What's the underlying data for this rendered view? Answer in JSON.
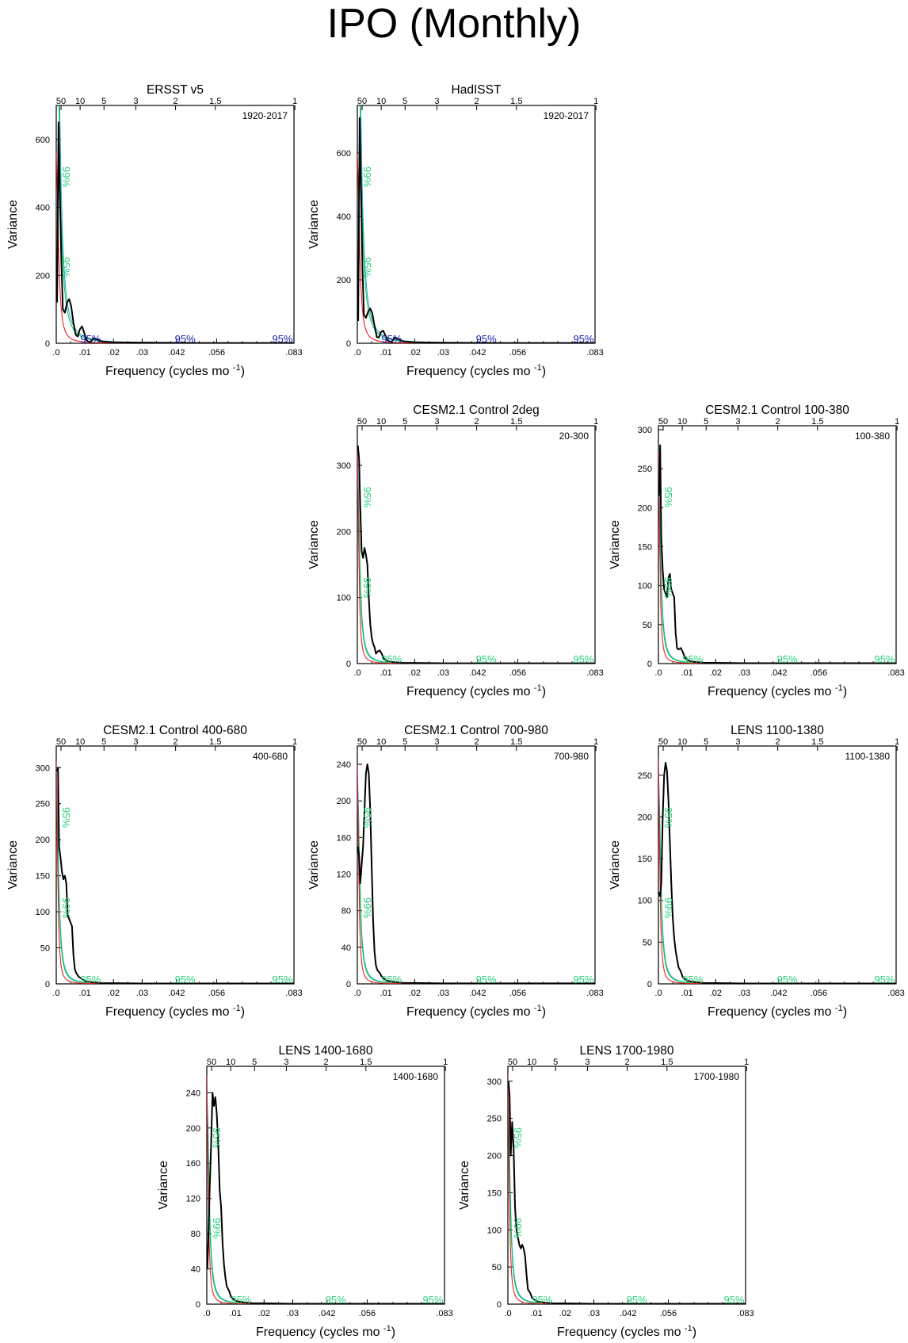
{
  "main_title": "IPO (Monthly)",
  "colors": {
    "spectrum": "#000000",
    "red_noise": "#e8202a",
    "sig_95": "#00cc44",
    "sig_99": "#2aa0d8",
    "label_blue": "#1a22b0",
    "label_green": "#2bd07a"
  },
  "shared": {
    "x_label_main": "Frequency (cycles mo",
    "x_label_sup": "-1",
    "x_label_close": ")",
    "y_label": "Variance",
    "bottom_ticks": [
      ".0",
      ".01",
      ".02",
      ".03",
      ".042",
      ".056",
      ".083"
    ],
    "bottom_tick_values": [
      0,
      0.01,
      0.02,
      0.03,
      0.042,
      0.056,
      0.083
    ],
    "top_ticks": [
      "50",
      "10",
      "5",
      "3",
      "2",
      "1.5",
      "1"
    ],
    "top_tick_periods_years": [
      50,
      10,
      5,
      3,
      2,
      1.5,
      1
    ],
    "sig_label": "95%"
  },
  "chart_data": [
    {
      "type": "line",
      "title": "ERSST v5",
      "period": "1920-2017",
      "xlim": [
        0,
        0.083
      ],
      "ylim": [
        0,
        700
      ],
      "yticks": [
        0,
        200,
        400,
        600
      ],
      "sig_label_color": "blue",
      "top_sig_labels": [
        "99%",
        "95%"
      ],
      "spectrum_x": [
        0.0003,
        0.0008,
        0.0013,
        0.0018,
        0.0023,
        0.003,
        0.0038,
        0.0045,
        0.0052,
        0.006,
        0.0068,
        0.0075,
        0.0082,
        0.009,
        0.0098,
        0.0105,
        0.0112,
        0.012,
        0.013,
        0.014,
        0.016,
        0.02,
        0.03,
        0.05,
        0.083
      ],
      "spectrum_y": [
        120,
        650,
        420,
        240,
        100,
        90,
        120,
        130,
        110,
        60,
        25,
        20,
        40,
        50,
        30,
        10,
        5,
        4,
        15,
        12,
        5,
        3,
        2,
        1,
        1
      ],
      "red_noise_y0": 560,
      "red_noise_scale": 0.0018,
      "sig95_y0": 1200,
      "sig95_scale": 0.0025,
      "sig99_y0": 1500,
      "sig99_scale": 0.0025
    },
    {
      "type": "line",
      "title": "HadISST",
      "period": "1920-2017",
      "xlim": [
        0,
        0.083
      ],
      "ylim": [
        0,
        750
      ],
      "yticks": [
        0,
        200,
        400,
        600
      ],
      "sig_label_color": "blue",
      "top_sig_labels": [
        "99%",
        "95%"
      ],
      "spectrum_x": [
        0.0003,
        0.0008,
        0.0013,
        0.0018,
        0.0023,
        0.003,
        0.0038,
        0.0045,
        0.0052,
        0.006,
        0.0068,
        0.0075,
        0.0082,
        0.009,
        0.0098,
        0.0105,
        0.0112,
        0.012,
        0.013,
        0.014,
        0.016,
        0.02,
        0.03,
        0.05,
        0.083
      ],
      "spectrum_y": [
        70,
        710,
        480,
        230,
        90,
        80,
        100,
        110,
        95,
        55,
        20,
        18,
        35,
        40,
        25,
        10,
        6,
        4,
        18,
        15,
        6,
        3,
        2,
        1,
        1
      ],
      "red_noise_y0": 600,
      "red_noise_scale": 0.0018,
      "sig95_y0": 1300,
      "sig95_scale": 0.0025,
      "sig99_y0": 1600,
      "sig99_scale": 0.0025
    },
    {
      "type": "line",
      "title": "CESM2.1 Control 2deg",
      "period": "20-300",
      "xlim": [
        0,
        0.083
      ],
      "ylim": [
        0,
        360
      ],
      "yticks": [
        0,
        100,
        200,
        300
      ],
      "sig_label_color": "green",
      "top_sig_labels": [
        "95%",
        "99%"
      ],
      "spectrum_x": [
        0.0002,
        0.0006,
        0.001,
        0.0015,
        0.002,
        0.0025,
        0.003,
        0.0035,
        0.004,
        0.0045,
        0.005,
        0.0055,
        0.006,
        0.0065,
        0.007,
        0.0078,
        0.0085,
        0.0092,
        0.01,
        0.011,
        0.013,
        0.016,
        0.02,
        0.03,
        0.05,
        0.083
      ],
      "spectrum_y": [
        330,
        310,
        240,
        170,
        160,
        175,
        165,
        150,
        100,
        60,
        40,
        30,
        25,
        15,
        18,
        20,
        15,
        8,
        5,
        3,
        2,
        1,
        1,
        0.5,
        0.5,
        0.5
      ],
      "red_noise_y0": 330,
      "red_noise_scale": 0.0011,
      "sig95_y0": 300,
      "sig95_scale": 0.0018,
      "sig99_y0": 320,
      "sig99_scale": 0.0019
    },
    {
      "type": "line",
      "title": "CESM2.1 Control 100-380",
      "period": "100-380",
      "xlim": [
        0,
        0.083
      ],
      "ylim": [
        0,
        305
      ],
      "yticks": [
        0,
        50,
        100,
        150,
        200,
        250,
        300
      ],
      "sig_label_color": "green",
      "top_sig_labels": [
        "95%",
        "99%"
      ],
      "spectrum_x": [
        0.0002,
        0.0006,
        0.001,
        0.0015,
        0.002,
        0.0025,
        0.003,
        0.0035,
        0.004,
        0.0045,
        0.005,
        0.0055,
        0.006,
        0.0065,
        0.007,
        0.0078,
        0.0085,
        0.0092,
        0.01,
        0.011,
        0.013,
        0.016,
        0.02,
        0.03,
        0.05,
        0.083
      ],
      "spectrum_y": [
        215,
        280,
        160,
        120,
        95,
        90,
        85,
        110,
        115,
        95,
        90,
        85,
        40,
        20,
        18,
        20,
        15,
        8,
        5,
        3,
        2,
        1,
        1,
        0.5,
        0.5,
        0.5
      ],
      "red_noise_y0": 270,
      "red_noise_scale": 0.0011,
      "sig95_y0": 240,
      "sig95_scale": 0.0018,
      "sig99_y0": 260,
      "sig99_scale": 0.0019
    },
    {
      "type": "line",
      "title": "CESM2.1 Control 400-680",
      "period": "400-680",
      "xlim": [
        0,
        0.083
      ],
      "ylim": [
        0,
        330
      ],
      "yticks": [
        0,
        50,
        100,
        150,
        200,
        250,
        300
      ],
      "sig_label_color": "green",
      "top_sig_labels": [
        "95%",
        "99%"
      ],
      "spectrum_x": [
        0.0002,
        0.0006,
        0.001,
        0.0015,
        0.002,
        0.0025,
        0.003,
        0.0035,
        0.004,
        0.0045,
        0.005,
        0.0055,
        0.006,
        0.0065,
        0.007,
        0.0078,
        0.0085,
        0.0092,
        0.01,
        0.011,
        0.013,
        0.016,
        0.02,
        0.03,
        0.05,
        0.083
      ],
      "spectrum_y": [
        295,
        300,
        190,
        175,
        155,
        145,
        150,
        140,
        95,
        90,
        85,
        80,
        40,
        20,
        15,
        10,
        8,
        6,
        4,
        3,
        2,
        1,
        1,
        0.5,
        0.5,
        0.5
      ],
      "red_noise_y0": 310,
      "red_noise_scale": 0.0011,
      "sig95_y0": 280,
      "sig95_scale": 0.0018,
      "sig99_y0": 300,
      "sig99_scale": 0.0019
    },
    {
      "type": "line",
      "title": "CESM2.1 Control 700-980",
      "period": "700-980",
      "xlim": [
        0,
        0.083
      ],
      "ylim": [
        0,
        260
      ],
      "yticks": [
        0,
        40,
        80,
        120,
        160,
        200,
        240
      ],
      "sig_label_color": "green",
      "top_sig_labels": [
        "95%",
        "99%"
      ],
      "spectrum_x": [
        0.0002,
        0.0006,
        0.001,
        0.0015,
        0.002,
        0.0025,
        0.003,
        0.0035,
        0.004,
        0.0045,
        0.005,
        0.0055,
        0.006,
        0.0065,
        0.007,
        0.0078,
        0.0085,
        0.0092,
        0.01,
        0.011,
        0.013,
        0.016,
        0.02,
        0.03,
        0.05,
        0.083
      ],
      "spectrum_y": [
        150,
        140,
        110,
        130,
        150,
        190,
        230,
        240,
        230,
        190,
        130,
        70,
        35,
        20,
        15,
        12,
        8,
        6,
        4,
        3,
        2,
        1,
        1,
        0.5,
        0.5,
        0.5
      ],
      "red_noise_y0": 240,
      "red_noise_scale": 0.0011,
      "sig95_y0": 220,
      "sig95_scale": 0.0018,
      "sig99_y0": 235,
      "sig99_scale": 0.0019
    },
    {
      "type": "line",
      "title": "LENS 1100-1380",
      "period": "1100-1380",
      "xlim": [
        0,
        0.083
      ],
      "ylim": [
        0,
        285
      ],
      "yticks": [
        0,
        50,
        100,
        150,
        200,
        250
      ],
      "sig_label_color": "green",
      "top_sig_labels": [
        "95%",
        "99%"
      ],
      "spectrum_x": [
        0.0002,
        0.0006,
        0.001,
        0.0015,
        0.002,
        0.0025,
        0.003,
        0.0035,
        0.004,
        0.0045,
        0.005,
        0.0055,
        0.006,
        0.0065,
        0.007,
        0.0078,
        0.0085,
        0.0092,
        0.01,
        0.011,
        0.013,
        0.016,
        0.02,
        0.03,
        0.05,
        0.083
      ],
      "spectrum_y": [
        110,
        105,
        120,
        200,
        250,
        265,
        255,
        220,
        170,
        120,
        80,
        55,
        40,
        30,
        20,
        15,
        8,
        6,
        4,
        3,
        2,
        1,
        1,
        0.5,
        0.5,
        0.5
      ],
      "red_noise_y0": 270,
      "red_noise_scale": 0.0011,
      "sig95_y0": 245,
      "sig95_scale": 0.0018,
      "sig99_y0": 260,
      "sig99_scale": 0.0019
    },
    {
      "type": "line",
      "title": "LENS 1400-1680",
      "period": "1400-1680",
      "xlim": [
        0,
        0.083
      ],
      "ylim": [
        0,
        270
      ],
      "yticks": [
        0,
        40,
        80,
        120,
        160,
        200,
        240
      ],
      "sig_label_color": "green",
      "top_sig_labels": [
        "95%",
        "99%"
      ],
      "spectrum_x": [
        0.0002,
        0.0006,
        0.001,
        0.0015,
        0.002,
        0.0025,
        0.003,
        0.0035,
        0.004,
        0.0045,
        0.005,
        0.0055,
        0.006,
        0.0065,
        0.007,
        0.0078,
        0.0085,
        0.0092,
        0.01,
        0.011,
        0.013,
        0.016,
        0.02,
        0.03,
        0.05,
        0.083
      ],
      "spectrum_y": [
        40,
        80,
        130,
        180,
        240,
        225,
        235,
        215,
        180,
        130,
        110,
        70,
        45,
        30,
        20,
        15,
        8,
        6,
        4,
        3,
        2,
        1,
        1,
        0.5,
        0.5,
        0.5
      ],
      "red_noise_y0": 260,
      "red_noise_scale": 0.0011,
      "sig95_y0": 235,
      "sig95_scale": 0.0018,
      "sig99_y0": 250,
      "sig99_scale": 0.0019
    },
    {
      "type": "line",
      "title": "LENS 1700-1980",
      "period": "1700-1980",
      "xlim": [
        0,
        0.083
      ],
      "ylim": [
        0,
        320
      ],
      "yticks": [
        0,
        50,
        100,
        150,
        200,
        250,
        300
      ],
      "sig_label_color": "green",
      "top_sig_labels": [
        "95%",
        "99%"
      ],
      "spectrum_x": [
        0.0002,
        0.0006,
        0.001,
        0.0015,
        0.002,
        0.0025,
        0.003,
        0.0035,
        0.004,
        0.0045,
        0.005,
        0.0055,
        0.006,
        0.0065,
        0.007,
        0.0078,
        0.0085,
        0.0092,
        0.01,
        0.011,
        0.013,
        0.016,
        0.02,
        0.03,
        0.05,
        0.083
      ],
      "spectrum_y": [
        300,
        280,
        200,
        245,
        210,
        130,
        100,
        90,
        80,
        75,
        80,
        75,
        65,
        40,
        20,
        15,
        8,
        6,
        4,
        3,
        2,
        1,
        1,
        0.5,
        0.5,
        0.5
      ],
      "red_noise_y0": 310,
      "red_noise_scale": 0.0011,
      "sig95_y0": 280,
      "sig95_scale": 0.0018,
      "sig99_y0": 295,
      "sig99_scale": 0.0019
    }
  ]
}
